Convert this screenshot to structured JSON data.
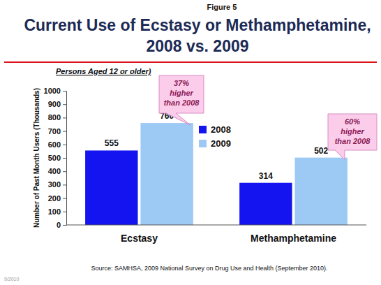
{
  "chart_data": {
    "type": "bar",
    "figure_label": "Figure 5",
    "title": [
      "Current Use of Ecstasy or Methamphetamine,",
      "2008 vs. 2009"
    ],
    "subtitle": "Persons Aged 12 or older)",
    "y_label": "Number of Past Month Users (Thousands)",
    "categories": [
      "Ecstasy",
      "Methamphetamine"
    ],
    "series": [
      {
        "name": "2008",
        "color": "#1414f0",
        "values": [
          555,
          314
        ]
      },
      {
        "name": "2009",
        "color": "#9ccaf5",
        "values": [
          760,
          502
        ]
      }
    ],
    "ylim": [
      0,
      1000
    ],
    "yticks": [
      0,
      100,
      200,
      300,
      400,
      500,
      600,
      700,
      800,
      900,
      1000
    ],
    "data_labels": true,
    "legend": "top",
    "annotations": [
      {
        "lines": [
          "37%",
          "higher",
          "than 2008"
        ],
        "category": 0,
        "series": 1
      },
      {
        "lines": [
          "60%",
          "higher",
          "than 2008"
        ],
        "category": 1,
        "series": 1
      }
    ],
    "source": "Source:  SAMHSA, 2009 National Survey on Drug Use and Health (September 2010).",
    "footer": "9/2010"
  }
}
